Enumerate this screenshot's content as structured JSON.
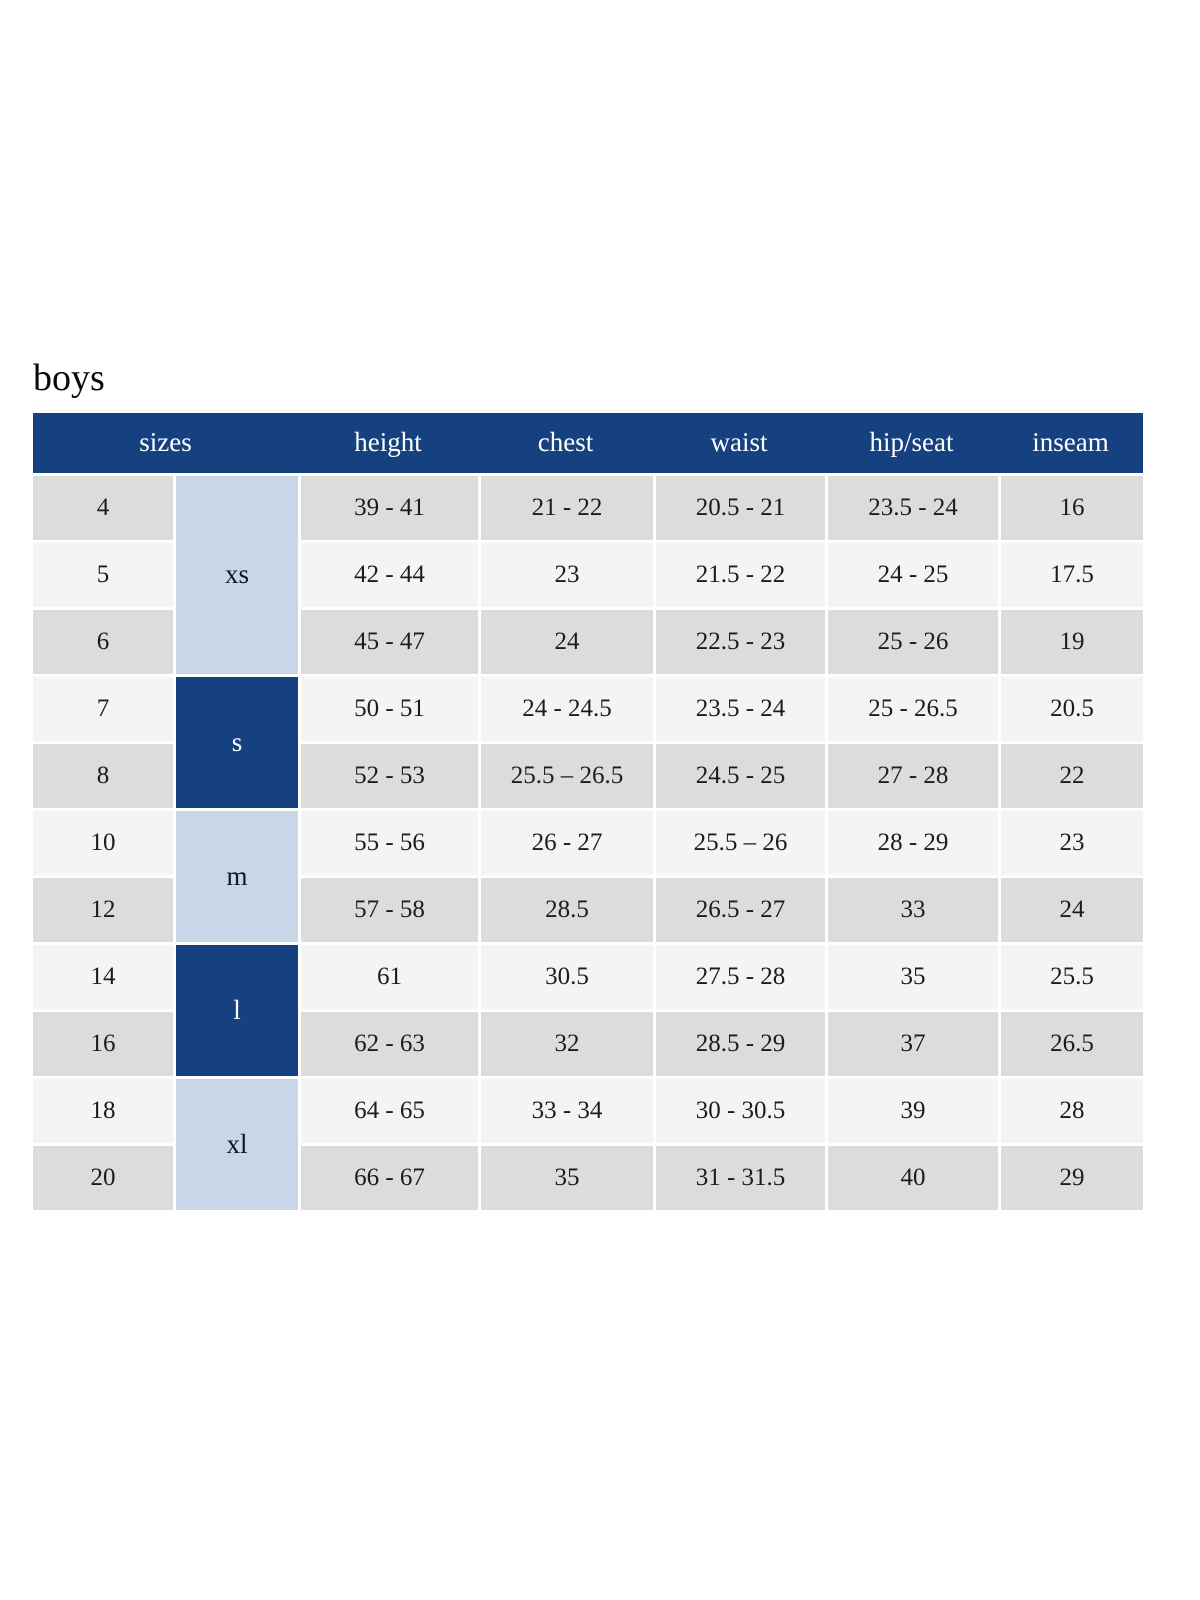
{
  "page": {
    "title": "boys"
  },
  "colors": {
    "header_bg": "#154180",
    "group_dark_bg": "#154180",
    "group_light_bg": "#c9d6e7",
    "row_odd_bg": "#dcdcdc",
    "row_even_bg": "#f4f4f4",
    "header_text": "#ffffff",
    "body_text": "#1c1c1c"
  },
  "chart_data": {
    "type": "table",
    "title": "boys",
    "columns": [
      "sizes",
      "height",
      "chest",
      "waist",
      "hip/seat",
      "inseam"
    ],
    "size_groups": [
      {
        "label": "xs",
        "rows": 3,
        "variant": "light"
      },
      {
        "label": "s",
        "rows": 2,
        "variant": "dark"
      },
      {
        "label": "m",
        "rows": 2,
        "variant": "light"
      },
      {
        "label": "l",
        "rows": 2,
        "variant": "dark"
      },
      {
        "label": "xl",
        "rows": 2,
        "variant": "light"
      }
    ],
    "rows": [
      [
        "4",
        "39 - 41",
        "21 - 22",
        "20.5 - 21",
        "23.5 - 24",
        "16"
      ],
      [
        "5",
        "42 - 44",
        "23",
        "21.5 - 22",
        "24 - 25",
        "17.5"
      ],
      [
        "6",
        "45 - 47",
        "24",
        "22.5 - 23",
        "25 - 26",
        "19"
      ],
      [
        "7",
        "50 - 51",
        "24 - 24.5",
        "23.5 - 24",
        "25 - 26.5",
        "20.5"
      ],
      [
        "8",
        "52 - 53",
        "25.5 – 26.5",
        "24.5 - 25",
        "27 - 28",
        "22"
      ],
      [
        "10",
        "55 - 56",
        "26 - 27",
        "25.5 – 26",
        "28 - 29",
        "23"
      ],
      [
        "12",
        "57 - 58",
        "28.5",
        "26.5 - 27",
        "33",
        "24"
      ],
      [
        "14",
        "61",
        "30.5",
        "27.5 - 28",
        "35",
        "25.5"
      ],
      [
        "16",
        "62 - 63",
        "32",
        "28.5 - 29",
        "37",
        "26.5"
      ],
      [
        "18",
        "64 - 65",
        "33 - 34",
        "30 - 30.5",
        "39",
        "28"
      ],
      [
        "20",
        "66 - 67",
        "35",
        "31 - 31.5",
        "40",
        "29"
      ]
    ]
  }
}
